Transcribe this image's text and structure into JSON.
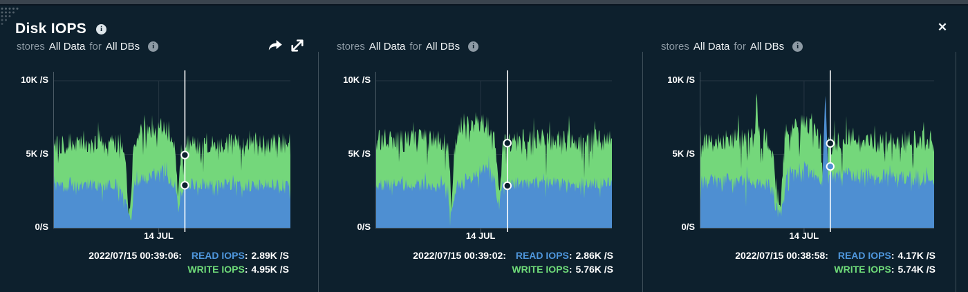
{
  "header": {
    "title": "Disk IOPS"
  },
  "icons": {
    "close_glyph": "✕",
    "info_glyph": "i",
    "share": "share-arrow-icon",
    "expand": "expand-diagonal-icon",
    "drag_dots": "corner-dots-decoration"
  },
  "labels": {
    "separator": ":"
  },
  "colors": {
    "background": "#0d202d",
    "top_strip": "#3a444e",
    "divider": "#3f505b",
    "axis": "#4a5a65",
    "grid": "#263643",
    "text": "#ffffff",
    "text_dim": "#8d9aa4",
    "read_blue": "#4e8fd2",
    "write_green": "#74d77b",
    "crosshair": "#ffffff"
  },
  "panels": [
    {
      "subtitle": {
        "prefix": "stores",
        "scope": "All Data",
        "connector": "for",
        "target": "All DBs"
      },
      "readout": {
        "timestamp": "2022/07/15 00:39:06:",
        "read_label": "READ IOPS",
        "read_value": "2.89K /S",
        "write_label": "WRITE IOPS",
        "write_value": "4.95K /S"
      }
    },
    {
      "subtitle": {
        "prefix": "stores",
        "scope": "All Data",
        "connector": "for",
        "target": "All DBs"
      },
      "readout": {
        "timestamp": "2022/07/15 00:39:02:",
        "read_label": "READ IOPS",
        "read_value": "2.86K /S",
        "write_label": "WRITE IOPS",
        "write_value": "5.76K /S"
      }
    },
    {
      "subtitle": {
        "prefix": "stores",
        "scope": "All Data",
        "connector": "for",
        "target": "All DBs"
      },
      "readout": {
        "timestamp": "2022/07/15 00:38:58:",
        "read_label": "READ IOPS",
        "read_value": "4.17K /S",
        "write_label": "WRITE IOPS",
        "write_value": "5.74K /S"
      }
    }
  ],
  "chart_data": [
    {
      "type": "area",
      "title": "Disk IOPS — stores All Data for All DBs",
      "unit": "K/S",
      "ylim": [
        0,
        10.8
      ],
      "grid": true,
      "yticks": [
        {
          "value": 10,
          "label": "10K /S"
        },
        {
          "value": 5,
          "label": "5K /S"
        },
        {
          "value": 0,
          "label": "0/S"
        }
      ],
      "xticks": [
        {
          "pos": 0.445,
          "label": "14 JUL"
        }
      ],
      "cursor": {
        "x": 0.555,
        "read_value": 2.89,
        "write_value": 4.95,
        "read_fill": "#0d212e",
        "write_fill": "#0d212e"
      },
      "series": [
        {
          "name": "WRITE IOPS",
          "color": "#74d77b",
          "noise": 0.75,
          "seed": 101,
          "spikes": [],
          "profile": [
            [
              0,
              5.7
            ],
            [
              0.1,
              5.8
            ],
            [
              0.2,
              5.7
            ],
            [
              0.29,
              5.8
            ],
            [
              0.305,
              5.1
            ],
            [
              0.315,
              1.6
            ],
            [
              0.325,
              0.9
            ],
            [
              0.338,
              5.9
            ],
            [
              0.37,
              6.4
            ],
            [
              0.43,
              6.8
            ],
            [
              0.465,
              7.0
            ],
            [
              0.49,
              6.5
            ],
            [
              0.515,
              5.9
            ],
            [
              0.527,
              2.0
            ],
            [
              0.54,
              5.4
            ],
            [
              0.56,
              5.6
            ],
            [
              0.7,
              5.8
            ],
            [
              0.85,
              5.6
            ],
            [
              1,
              5.8
            ]
          ]
        },
        {
          "name": "READ IOPS",
          "color": "#4e8fd2",
          "noise": 0.45,
          "seed": 102,
          "spikes": [],
          "profile": [
            [
              0,
              2.8
            ],
            [
              0.15,
              2.9
            ],
            [
              0.29,
              2.9
            ],
            [
              0.315,
              1.1
            ],
            [
              0.327,
              0.6
            ],
            [
              0.345,
              3.1
            ],
            [
              0.38,
              3.3
            ],
            [
              0.43,
              3.5
            ],
            [
              0.462,
              4.1
            ],
            [
              0.49,
              3.2
            ],
            [
              0.515,
              2.8
            ],
            [
              0.53,
              1.7
            ],
            [
              0.545,
              2.9
            ],
            [
              0.65,
              3.0
            ],
            [
              0.85,
              2.9
            ],
            [
              1,
              2.9
            ]
          ]
        }
      ]
    },
    {
      "type": "area",
      "title": "stores All Data for All DBs",
      "unit": "K/S",
      "ylim": [
        0,
        10.8
      ],
      "grid": true,
      "yticks": [
        {
          "value": 10,
          "label": "10K /S"
        },
        {
          "value": 5,
          "label": "5K /S"
        },
        {
          "value": 0,
          "label": "0/S"
        }
      ],
      "xticks": [
        {
          "pos": 0.445,
          "label": "14 JUL"
        }
      ],
      "cursor": {
        "x": 0.558,
        "read_value": 2.86,
        "write_value": 5.76,
        "read_fill": "#0d212e",
        "write_fill": "#0d212e"
      },
      "series": [
        {
          "name": "WRITE IOPS",
          "color": "#74d77b",
          "noise": 0.8,
          "seed": 201,
          "spikes": [],
          "profile": [
            [
              0,
              6.0
            ],
            [
              0.15,
              5.9
            ],
            [
              0.29,
              6.0
            ],
            [
              0.31,
              5.4
            ],
            [
              0.322,
              1.4
            ],
            [
              0.34,
              6.3
            ],
            [
              0.37,
              7.1
            ],
            [
              0.44,
              7.2
            ],
            [
              0.475,
              6.9
            ],
            [
              0.5,
              6.4
            ],
            [
              0.524,
              2.2
            ],
            [
              0.54,
              5.9
            ],
            [
              0.65,
              6.0
            ],
            [
              0.85,
              5.9
            ],
            [
              1,
              6.0
            ]
          ]
        },
        {
          "name": "READ IOPS",
          "color": "#4e8fd2",
          "noise": 0.45,
          "seed": 202,
          "spikes": [],
          "profile": [
            [
              0,
              2.9
            ],
            [
              0.2,
              2.9
            ],
            [
              0.3,
              2.8
            ],
            [
              0.322,
              0.8
            ],
            [
              0.345,
              3.0
            ],
            [
              0.4,
              3.4
            ],
            [
              0.45,
              3.9
            ],
            [
              0.475,
              4.2
            ],
            [
              0.5,
              3.3
            ],
            [
              0.524,
              1.6
            ],
            [
              0.54,
              3.0
            ],
            [
              0.7,
              3.1
            ],
            [
              1,
              3.0
            ]
          ]
        }
      ]
    },
    {
      "type": "area",
      "title": "stores All Data for All DBs",
      "unit": "K/S",
      "ylim": [
        0,
        10.8
      ],
      "grid": true,
      "yticks": [
        {
          "value": 10,
          "label": "10K /S"
        },
        {
          "value": 5,
          "label": "5K /S"
        },
        {
          "value": 0,
          "label": "0/S"
        }
      ],
      "xticks": [
        {
          "pos": 0.445,
          "label": "14 JUL"
        }
      ],
      "cursor": {
        "x": 0.557,
        "read_value": 4.17,
        "write_value": 5.74,
        "read_fill": "#4e8fd2",
        "write_fill": "#0d212e"
      },
      "series": [
        {
          "name": "WRITE IOPS",
          "color": "#74d77b",
          "noise": 0.8,
          "seed": 301,
          "spikes": [
            {
              "x": 0.243,
              "peak": 9.7,
              "width": 2
            }
          ],
          "profile": [
            [
              0,
              5.9
            ],
            [
              0.15,
              6.0
            ],
            [
              0.29,
              6.0
            ],
            [
              0.31,
              5.3
            ],
            [
              0.33,
              2.6
            ],
            [
              0.345,
              1.5
            ],
            [
              0.365,
              6.3
            ],
            [
              0.41,
              6.8
            ],
            [
              0.46,
              7.1
            ],
            [
              0.49,
              6.5
            ],
            [
              0.515,
              6.0
            ],
            [
              0.53,
              2.1
            ],
            [
              0.545,
              5.7
            ],
            [
              0.65,
              5.9
            ],
            [
              0.85,
              5.8
            ],
            [
              1,
              5.9
            ]
          ]
        },
        {
          "name": "READ IOPS",
          "color": "#4e8fd2",
          "noise": 0.55,
          "seed": 302,
          "spikes": [
            {
              "x": 0.536,
              "peak": 9.4,
              "width": 2
            }
          ],
          "profile": [
            [
              0,
              3.1
            ],
            [
              0.2,
              3.2
            ],
            [
              0.3,
              3.0
            ],
            [
              0.33,
              1.2
            ],
            [
              0.35,
              0.6
            ],
            [
              0.37,
              3.6
            ],
            [
              0.43,
              3.9
            ],
            [
              0.46,
              4.3
            ],
            [
              0.49,
              3.7
            ],
            [
              0.515,
              3.2
            ],
            [
              0.528,
              2.0
            ],
            [
              0.545,
              3.4
            ],
            [
              0.62,
              3.6
            ],
            [
              0.8,
              3.5
            ],
            [
              1,
              3.3
            ]
          ]
        }
      ]
    }
  ]
}
